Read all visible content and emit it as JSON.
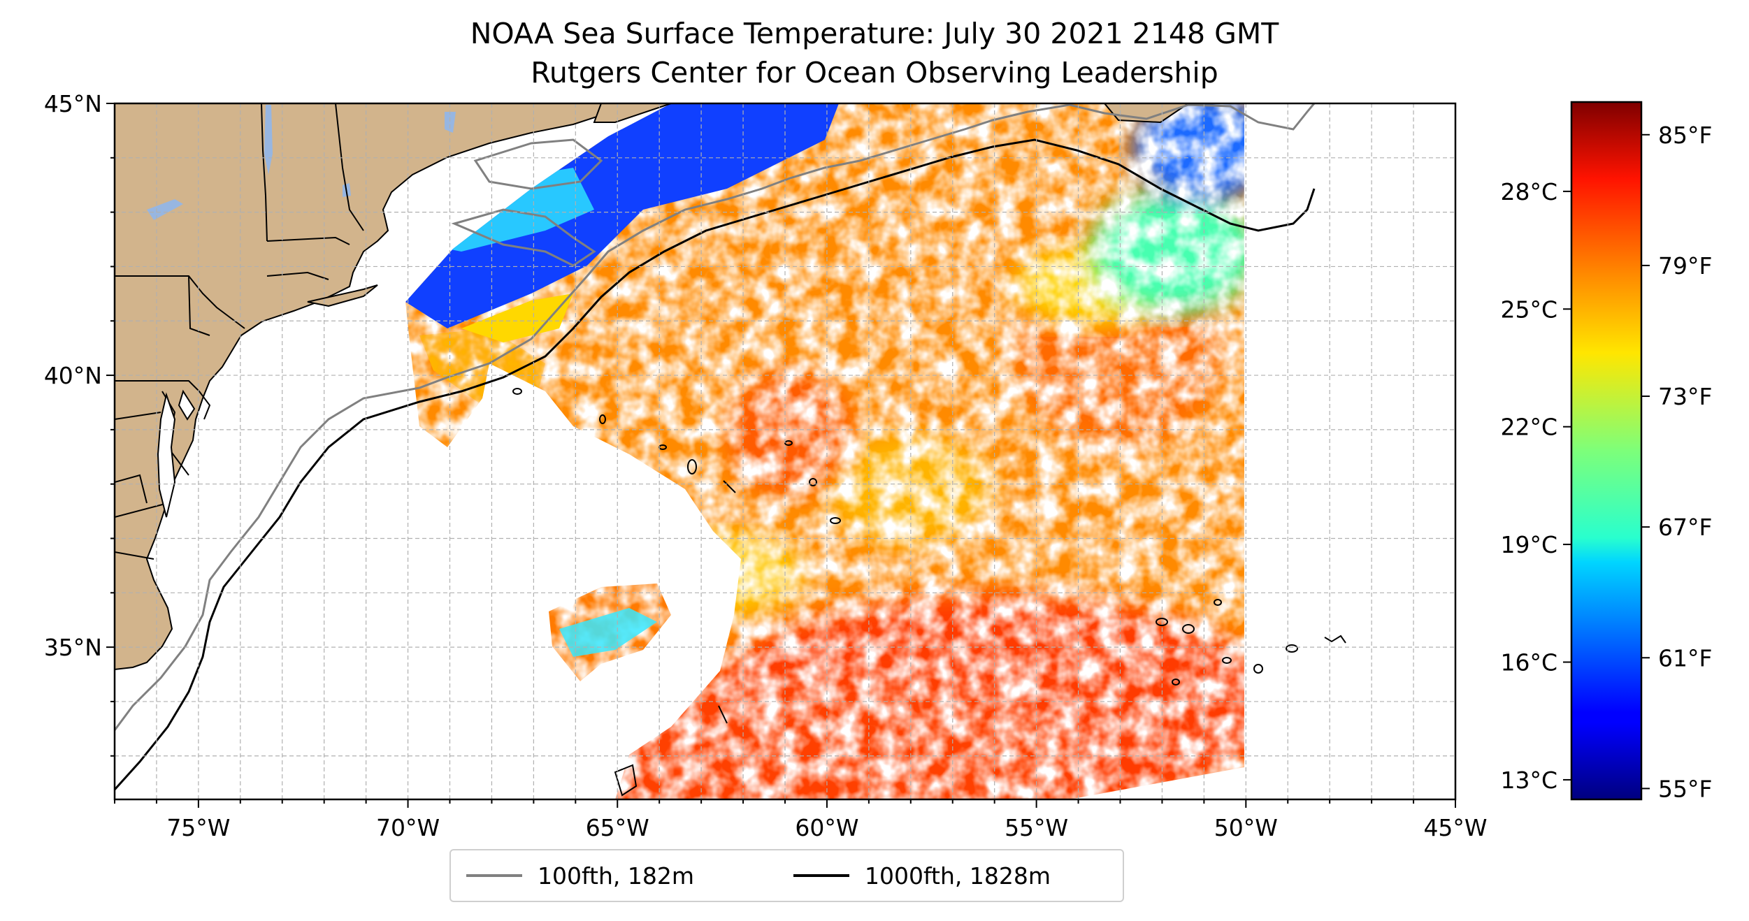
{
  "title": {
    "line1": "NOAA Sea Surface Temperature: July 30 2021 2148 GMT",
    "line2": "Rutgers Center for Ocean Observing Leadership"
  },
  "map": {
    "lon_range": [
      -77,
      -45
    ],
    "lat_range": [
      32.2,
      45
    ],
    "lon_ticks": [
      {
        "value": -75,
        "label": "75°W"
      },
      {
        "value": -70,
        "label": "70°W"
      },
      {
        "value": -65,
        "label": "65°W"
      },
      {
        "value": -60,
        "label": "60°W"
      },
      {
        "value": -55,
        "label": "55°W"
      },
      {
        "value": -50,
        "label": "50°W"
      },
      {
        "value": -45,
        "label": "45°W"
      }
    ],
    "lat_ticks": [
      {
        "value": 45,
        "label": "45°N"
      },
      {
        "value": 40,
        "label": "40°N"
      },
      {
        "value": 35,
        "label": "35°N"
      }
    ],
    "colors": {
      "land": "#d2b48c",
      "lakes": "#97b6e1",
      "grid": "#b0b0b0",
      "isobath_100fth": "#808080",
      "isobath_1000fth": "#000000"
    }
  },
  "colorbar": {
    "colormap": "jet",
    "celsius_ticks": [
      {
        "value": 13,
        "label": "13°C"
      },
      {
        "value": 16,
        "label": "16°C"
      },
      {
        "value": 19,
        "label": "19°C"
      },
      {
        "value": 22,
        "label": "22°C"
      },
      {
        "value": 25,
        "label": "25°C"
      },
      {
        "value": 28,
        "label": "28°C"
      }
    ],
    "fahrenheit_ticks": [
      {
        "value": 55,
        "label": "55°F"
      },
      {
        "value": 61,
        "label": "61°F"
      },
      {
        "value": 67,
        "label": "67°F"
      },
      {
        "value": 73,
        "label": "73°F"
      },
      {
        "value": 79,
        "label": "79°F"
      },
      {
        "value": 85,
        "label": "85°F"
      }
    ],
    "f_range": [
      54.5,
      86.5
    ]
  },
  "legend": {
    "entries": [
      {
        "label": "100fth, 182m",
        "color": "#808080"
      },
      {
        "label": "1000fth, 1828m",
        "color": "#000000"
      }
    ]
  }
}
